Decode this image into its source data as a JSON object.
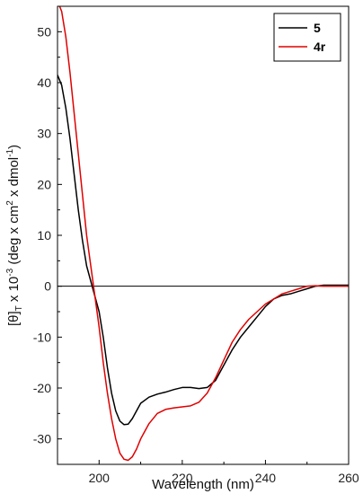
{
  "chart_data": {
    "type": "line",
    "title": "",
    "xlabel": "Wavelength (nm)",
    "ylabel_parts": [
      "[θ]",
      "T",
      " x 10",
      "-3",
      " (deg x cm",
      "2",
      " x dmol",
      "-1",
      ")"
    ],
    "xlim": [
      190,
      260
    ],
    "ylim": [
      -35,
      55
    ],
    "xticks": [
      200,
      220,
      240,
      260
    ],
    "yticks": [
      -30,
      -20,
      -10,
      0,
      10,
      20,
      30,
      40,
      50
    ],
    "grid": false,
    "zero_line": true,
    "legend_position": "top-right",
    "series": [
      {
        "name": "5",
        "color": "#000000",
        "points": [
          [
            190,
            41.5
          ],
          [
            191,
            39.5
          ],
          [
            192,
            35
          ],
          [
            193,
            29
          ],
          [
            194,
            22
          ],
          [
            195,
            15
          ],
          [
            196,
            9
          ],
          [
            197,
            4
          ],
          [
            198,
            1
          ],
          [
            199,
            -2
          ],
          [
            200,
            -5
          ],
          [
            201,
            -10
          ],
          [
            202,
            -16
          ],
          [
            203,
            -21
          ],
          [
            204,
            -24.5
          ],
          [
            205,
            -26.5
          ],
          [
            206,
            -27.2
          ],
          [
            207,
            -27.1
          ],
          [
            208,
            -26
          ],
          [
            209,
            -24.5
          ],
          [
            210,
            -23
          ],
          [
            212,
            -21.8
          ],
          [
            214,
            -21.2
          ],
          [
            216,
            -20.8
          ],
          [
            218,
            -20.3
          ],
          [
            220,
            -19.9
          ],
          [
            222,
            -19.9
          ],
          [
            224,
            -20.1
          ],
          [
            226,
            -19.9
          ],
          [
            228,
            -18.5
          ],
          [
            230,
            -15.5
          ],
          [
            232,
            -12.5
          ],
          [
            234,
            -10
          ],
          [
            236,
            -8
          ],
          [
            238,
            -6
          ],
          [
            240,
            -4
          ],
          [
            242,
            -2.5
          ],
          [
            244,
            -1.8
          ],
          [
            246,
            -1.5
          ],
          [
            248,
            -1
          ],
          [
            250,
            -0.5
          ],
          [
            252,
            0
          ],
          [
            254,
            0.2
          ],
          [
            256,
            0.2
          ],
          [
            258,
            0.2
          ],
          [
            260,
            0.2
          ]
        ]
      },
      {
        "name": "4r",
        "color": "#e00000",
        "points": [
          [
            190,
            56
          ],
          [
            191,
            54
          ],
          [
            192,
            49
          ],
          [
            193,
            42
          ],
          [
            194,
            34
          ],
          [
            195,
            26
          ],
          [
            196,
            18
          ],
          [
            197,
            10
          ],
          [
            198,
            4
          ],
          [
            199,
            -2
          ],
          [
            200,
            -8
          ],
          [
            201,
            -15
          ],
          [
            202,
            -21
          ],
          [
            203,
            -26
          ],
          [
            204,
            -30
          ],
          [
            205,
            -32.8
          ],
          [
            206,
            -34
          ],
          [
            207,
            -34.2
          ],
          [
            208,
            -33.5
          ],
          [
            209,
            -32
          ],
          [
            210,
            -30
          ],
          [
            212,
            -27
          ],
          [
            214,
            -25
          ],
          [
            216,
            -24.2
          ],
          [
            218,
            -23.9
          ],
          [
            220,
            -23.7
          ],
          [
            222,
            -23.5
          ],
          [
            224,
            -22.8
          ],
          [
            226,
            -21
          ],
          [
            228,
            -18
          ],
          [
            230,
            -14.5
          ],
          [
            232,
            -11
          ],
          [
            234,
            -8.5
          ],
          [
            236,
            -6.5
          ],
          [
            238,
            -5
          ],
          [
            240,
            -3.5
          ],
          [
            242,
            -2.5
          ],
          [
            244,
            -1.5
          ],
          [
            246,
            -1
          ],
          [
            248,
            -0.5
          ],
          [
            250,
            0
          ],
          [
            252,
            0.1
          ],
          [
            254,
            0
          ],
          [
            256,
            0
          ],
          [
            258,
            0
          ],
          [
            260,
            0
          ]
        ]
      }
    ]
  }
}
